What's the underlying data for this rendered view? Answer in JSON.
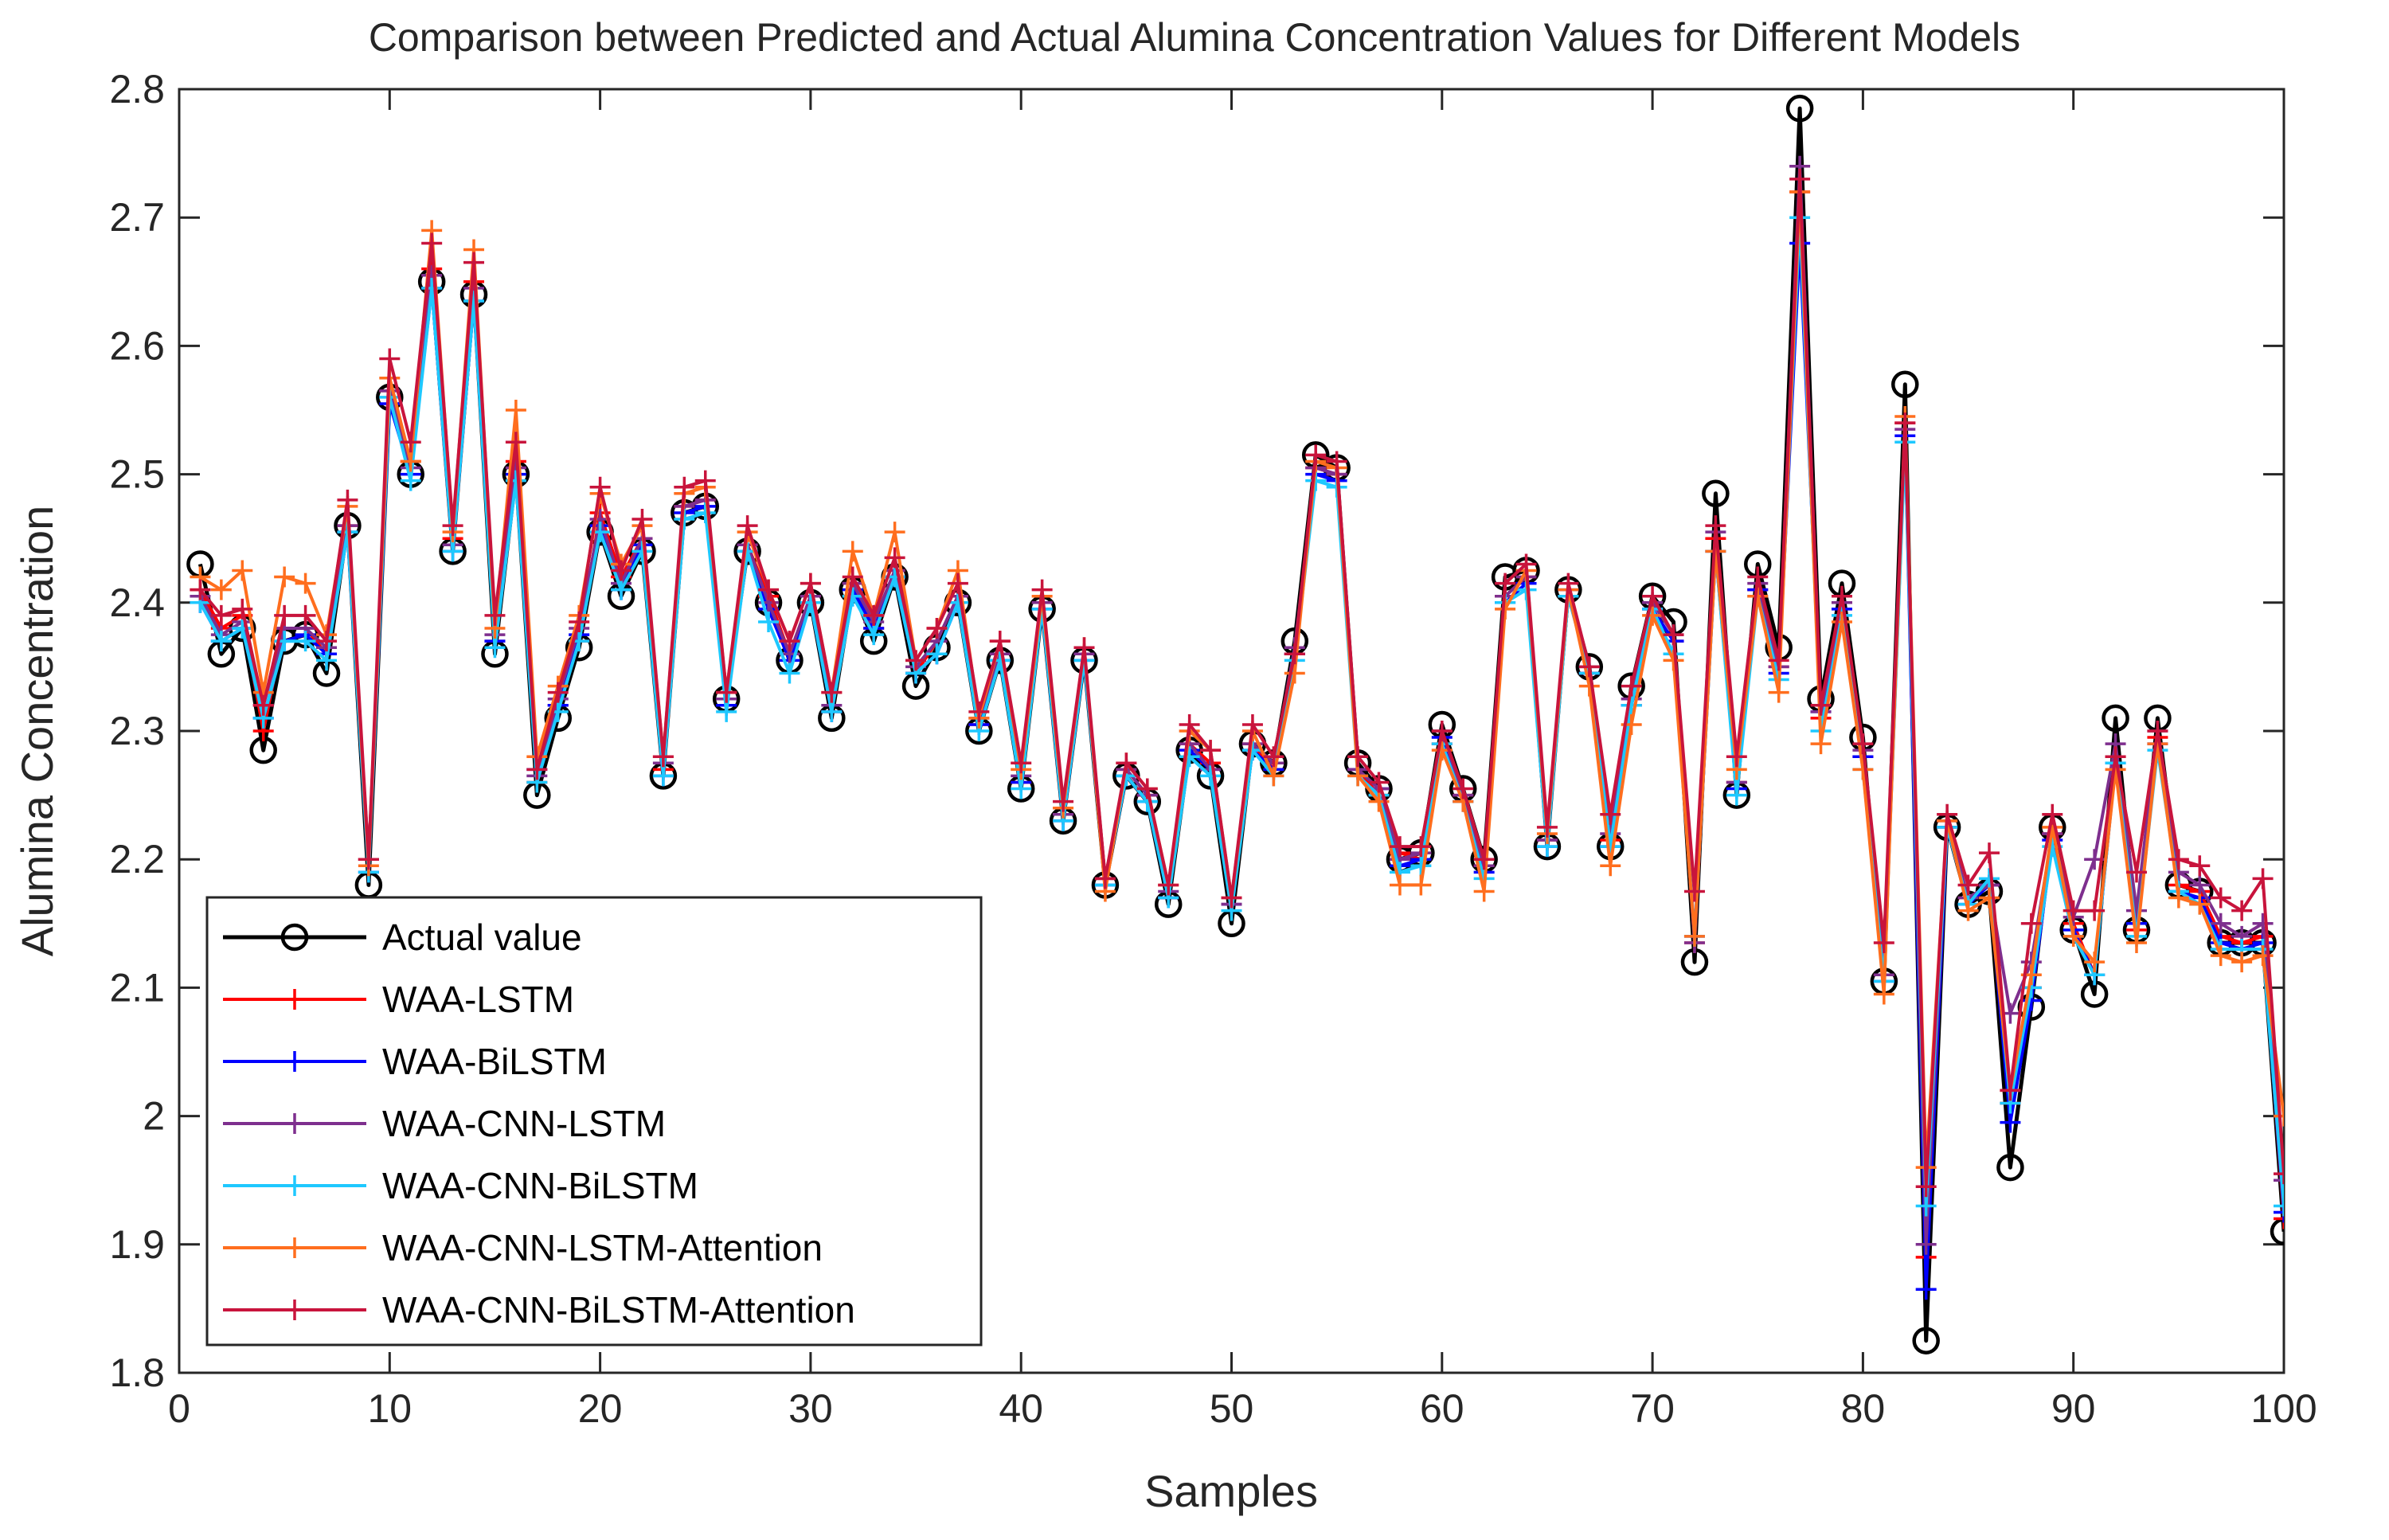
{
  "chart_data": {
    "type": "line",
    "title": "Comparison between Predicted and Actual Alumina Concentration Values for Different Models",
    "xlabel": "Samples",
    "ylabel": "Alumina Concentration",
    "xlim": [
      0,
      100
    ],
    "ylim": [
      1.8,
      2.8
    ],
    "xticks": [
      "0",
      "10",
      "20",
      "30",
      "40",
      "50",
      "60",
      "70",
      "80",
      "90",
      "100"
    ],
    "yticks": [
      "1.8",
      "1.9",
      "2",
      "2.1",
      "2.2",
      "2.3",
      "2.4",
      "2.5",
      "2.6",
      "2.7",
      "2.8"
    ],
    "grid": false,
    "legend_position": "bottom-left",
    "legend": [
      "Actual value",
      "WAA-LSTM",
      "WAA-BiLSTM",
      "WAA-CNN-LSTM",
      "WAA-CNN-BiLSTM",
      "WAA-CNN-LSTM-Attention",
      "WAA-CNN-BiLSTM-Attention"
    ],
    "x_start": 1,
    "series": [
      {
        "name": "Actual value",
        "color": "#000000",
        "marker": "circle",
        "line_width": 5,
        "values": [
          2.43,
          2.36,
          2.38,
          2.285,
          2.37,
          2.375,
          2.345,
          2.46,
          2.18,
          2.56,
          2.5,
          2.65,
          2.44,
          2.64,
          2.36,
          2.5,
          2.25,
          2.31,
          2.365,
          2.455,
          2.405,
          2.44,
          2.265,
          2.47,
          2.475,
          2.325,
          2.44,
          2.4,
          2.355,
          2.4,
          2.31,
          2.41,
          2.37,
          2.42,
          2.335,
          2.365,
          2.4,
          2.3,
          2.355,
          2.255,
          2.395,
          2.23,
          2.355,
          2.18,
          2.265,
          2.245,
          2.165,
          2.285,
          2.265,
          2.15,
          2.29,
          2.275,
          2.37,
          2.515,
          2.505,
          2.275,
          2.255,
          2.2,
          2.205,
          2.305,
          2.255,
          2.2,
          2.42,
          2.425,
          2.21,
          2.41,
          2.35,
          2.21,
          2.335,
          2.405,
          2.385,
          2.12,
          2.485,
          2.25,
          2.43,
          2.365,
          2.785,
          2.325,
          2.415,
          2.295,
          2.105,
          2.57,
          1.825,
          2.225,
          2.165,
          2.175,
          1.96,
          2.085,
          2.225,
          2.145,
          2.095,
          2.31,
          2.145,
          2.31,
          2.18,
          2.175,
          2.135,
          2.135,
          2.135,
          1.91
        ]
      },
      {
        "name": "WAA-LSTM",
        "color": "#ff0000",
        "marker": "plus",
        "line_width": 4,
        "values": [
          2.41,
          2.38,
          2.39,
          2.3,
          2.38,
          2.38,
          2.36,
          2.46,
          2.2,
          2.565,
          2.51,
          2.66,
          2.45,
          2.65,
          2.37,
          2.51,
          2.26,
          2.32,
          2.37,
          2.47,
          2.42,
          2.45,
          2.27,
          2.475,
          2.48,
          2.33,
          2.445,
          2.405,
          2.36,
          2.405,
          2.315,
          2.415,
          2.38,
          2.425,
          2.345,
          2.37,
          2.405,
          2.305,
          2.36,
          2.26,
          2.4,
          2.235,
          2.36,
          2.185,
          2.27,
          2.25,
          2.17,
          2.29,
          2.275,
          2.165,
          2.29,
          2.27,
          2.36,
          2.505,
          2.5,
          2.27,
          2.25,
          2.205,
          2.2,
          2.29,
          2.25,
          2.195,
          2.405,
          2.42,
          2.215,
          2.405,
          2.345,
          2.215,
          2.32,
          2.395,
          2.37,
          2.135,
          2.45,
          2.26,
          2.41,
          2.35,
          2.72,
          2.31,
          2.4,
          2.28,
          2.11,
          2.54,
          1.89,
          2.225,
          2.17,
          2.18,
          2.01,
          2.1,
          2.22,
          2.15,
          2.11,
          2.28,
          2.145,
          2.295,
          2.18,
          2.175,
          2.14,
          2.135,
          2.14,
          1.92
        ]
      },
      {
        "name": "WAA-BiLSTM",
        "color": "#0000ff",
        "marker": "plus",
        "line_width": 4,
        "values": [
          2.4,
          2.37,
          2.38,
          2.31,
          2.37,
          2.375,
          2.36,
          2.455,
          2.19,
          2.555,
          2.5,
          2.645,
          2.44,
          2.635,
          2.37,
          2.5,
          2.27,
          2.32,
          2.375,
          2.46,
          2.41,
          2.445,
          2.265,
          2.47,
          2.475,
          2.32,
          2.44,
          2.395,
          2.355,
          2.4,
          2.315,
          2.41,
          2.38,
          2.42,
          2.345,
          2.36,
          2.4,
          2.305,
          2.355,
          2.26,
          2.395,
          2.23,
          2.355,
          2.18,
          2.265,
          2.245,
          2.17,
          2.285,
          2.27,
          2.165,
          2.285,
          2.27,
          2.36,
          2.5,
          2.495,
          2.27,
          2.255,
          2.195,
          2.2,
          2.295,
          2.245,
          2.19,
          2.4,
          2.415,
          2.21,
          2.41,
          2.345,
          2.21,
          2.32,
          2.395,
          2.37,
          2.14,
          2.44,
          2.255,
          2.41,
          2.345,
          2.68,
          2.315,
          2.395,
          2.28,
          2.105,
          2.53,
          1.865,
          2.225,
          2.165,
          2.18,
          1.995,
          2.09,
          2.215,
          2.145,
          2.11,
          2.275,
          2.15,
          2.29,
          2.175,
          2.17,
          2.135,
          2.13,
          2.135,
          1.925
        ]
      },
      {
        "name": "WAA-CNN-LSTM",
        "color": "#7e2f8e",
        "marker": "plus",
        "line_width": 4,
        "values": [
          2.405,
          2.375,
          2.385,
          2.32,
          2.38,
          2.38,
          2.365,
          2.46,
          2.2,
          2.565,
          2.505,
          2.655,
          2.445,
          2.645,
          2.375,
          2.505,
          2.265,
          2.325,
          2.38,
          2.465,
          2.415,
          2.45,
          2.275,
          2.475,
          2.48,
          2.325,
          2.445,
          2.4,
          2.36,
          2.405,
          2.32,
          2.415,
          2.385,
          2.425,
          2.35,
          2.37,
          2.405,
          2.31,
          2.36,
          2.265,
          2.4,
          2.235,
          2.36,
          2.185,
          2.27,
          2.25,
          2.175,
          2.29,
          2.27,
          2.165,
          2.29,
          2.275,
          2.365,
          2.505,
          2.5,
          2.27,
          2.255,
          2.2,
          2.205,
          2.3,
          2.25,
          2.195,
          2.405,
          2.42,
          2.215,
          2.405,
          2.35,
          2.22,
          2.325,
          2.4,
          2.375,
          2.135,
          2.455,
          2.26,
          2.415,
          2.35,
          2.74,
          2.315,
          2.4,
          2.285,
          2.11,
          2.535,
          1.9,
          2.23,
          2.17,
          2.18,
          2.08,
          2.12,
          2.22,
          2.155,
          2.2,
          2.29,
          2.16,
          2.3,
          2.19,
          2.18,
          2.15,
          2.14,
          2.15,
          1.95
        ]
      },
      {
        "name": "WAA-CNN-BiLSTM",
        "color": "#1ec8ff",
        "marker": "plus",
        "line_width": 4,
        "values": [
          2.4,
          2.37,
          2.38,
          2.31,
          2.37,
          2.37,
          2.355,
          2.455,
          2.19,
          2.56,
          2.495,
          2.645,
          2.44,
          2.635,
          2.365,
          2.495,
          2.26,
          2.315,
          2.37,
          2.455,
          2.41,
          2.44,
          2.265,
          2.465,
          2.47,
          2.315,
          2.44,
          2.385,
          2.345,
          2.4,
          2.315,
          2.405,
          2.375,
          2.42,
          2.345,
          2.36,
          2.4,
          2.3,
          2.355,
          2.255,
          2.395,
          2.23,
          2.355,
          2.18,
          2.265,
          2.245,
          2.17,
          2.28,
          2.265,
          2.16,
          2.285,
          2.265,
          2.355,
          2.495,
          2.49,
          2.265,
          2.25,
          2.19,
          2.195,
          2.29,
          2.245,
          2.185,
          2.4,
          2.41,
          2.21,
          2.405,
          2.345,
          2.21,
          2.32,
          2.395,
          2.36,
          2.14,
          2.44,
          2.25,
          2.405,
          2.34,
          2.7,
          2.3,
          2.39,
          2.27,
          2.105,
          2.525,
          1.93,
          2.225,
          2.165,
          2.185,
          2.01,
          2.1,
          2.21,
          2.14,
          2.11,
          2.275,
          2.14,
          2.285,
          2.175,
          2.165,
          2.13,
          2.13,
          2.13,
          1.93
        ]
      },
      {
        "name": "WAA-CNN-LSTM-Attention",
        "color": "#ff6e1e",
        "marker": "plus",
        "line_width": 4,
        "values": [
          2.42,
          2.41,
          2.425,
          2.33,
          2.42,
          2.415,
          2.375,
          2.475,
          2.195,
          2.575,
          2.51,
          2.69,
          2.455,
          2.675,
          2.38,
          2.55,
          2.28,
          2.335,
          2.39,
          2.485,
          2.43,
          2.46,
          2.28,
          2.485,
          2.49,
          2.33,
          2.455,
          2.41,
          2.37,
          2.415,
          2.33,
          2.44,
          2.39,
          2.455,
          2.355,
          2.38,
          2.425,
          2.31,
          2.37,
          2.27,
          2.405,
          2.24,
          2.365,
          2.175,
          2.275,
          2.255,
          2.18,
          2.3,
          2.285,
          2.17,
          2.3,
          2.265,
          2.345,
          2.51,
          2.505,
          2.265,
          2.245,
          2.18,
          2.18,
          2.285,
          2.245,
          2.175,
          2.395,
          2.425,
          2.22,
          2.41,
          2.335,
          2.195,
          2.305,
          2.39,
          2.355,
          2.14,
          2.44,
          2.27,
          2.405,
          2.33,
          2.72,
          2.29,
          2.385,
          2.27,
          2.095,
          2.545,
          1.96,
          2.23,
          2.16,
          2.17,
          2.02,
          2.11,
          2.225,
          2.14,
          2.12,
          2.27,
          2.135,
          2.29,
          2.17,
          2.165,
          2.125,
          2.12,
          2.125,
          2.0
        ]
      },
      {
        "name": "WAA-CNN-BiLSTM-Attention",
        "color": "#c8143c",
        "marker": "plus",
        "line_width": 4,
        "values": [
          2.41,
          2.39,
          2.395,
          2.32,
          2.39,
          2.39,
          2.37,
          2.48,
          2.2,
          2.59,
          2.525,
          2.68,
          2.46,
          2.665,
          2.39,
          2.525,
          2.27,
          2.33,
          2.385,
          2.49,
          2.425,
          2.465,
          2.28,
          2.49,
          2.495,
          2.33,
          2.46,
          2.41,
          2.37,
          2.415,
          2.33,
          2.42,
          2.39,
          2.435,
          2.355,
          2.38,
          2.415,
          2.315,
          2.37,
          2.275,
          2.41,
          2.245,
          2.365,
          2.185,
          2.275,
          2.255,
          2.18,
          2.305,
          2.285,
          2.17,
          2.305,
          2.28,
          2.36,
          2.515,
          2.51,
          2.28,
          2.26,
          2.21,
          2.21,
          2.3,
          2.255,
          2.2,
          2.415,
          2.43,
          2.225,
          2.415,
          2.35,
          2.235,
          2.335,
          2.405,
          2.375,
          2.175,
          2.46,
          2.28,
          2.42,
          2.355,
          2.73,
          2.32,
          2.405,
          2.29,
          2.135,
          2.54,
          1.945,
          2.235,
          2.18,
          2.205,
          2.02,
          2.15,
          2.235,
          2.16,
          2.16,
          2.28,
          2.19,
          2.3,
          2.2,
          2.195,
          2.17,
          2.16,
          2.185,
          1.955
        ]
      }
    ]
  }
}
